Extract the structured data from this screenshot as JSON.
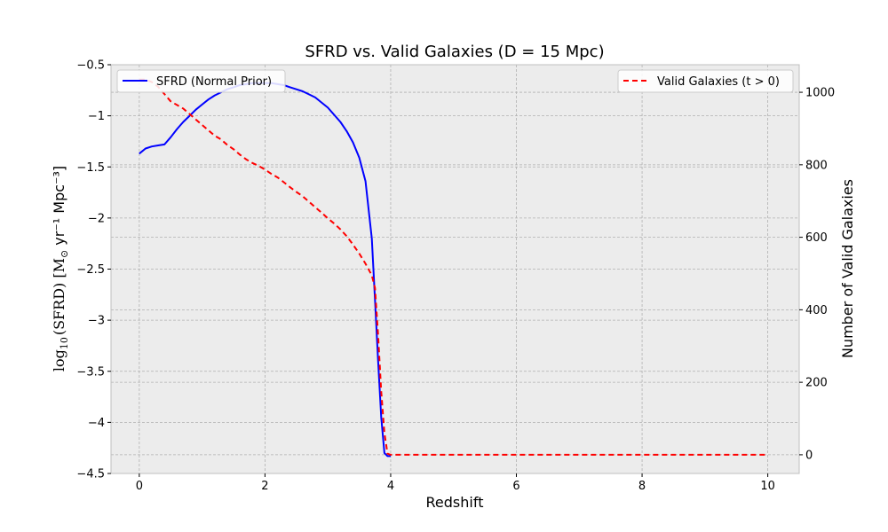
{
  "chart_data": {
    "type": "line",
    "title": "SFRD vs. Valid Galaxies (D = 15 Mpc)",
    "xlabel": "Redshift",
    "ylabel_left": {
      "prefix": "log",
      "subscript": "10",
      "quantity": "(SFRD) [M",
      "sun": "⊙",
      "units": " yr⁻¹ Mpc⁻³]"
    },
    "ylabel_right": "Number of Valid Galaxies",
    "xlim": [
      -0.45,
      10.5
    ],
    "ylim_left": [
      -4.5,
      -0.5
    ],
    "ylim_right": [
      -51.6,
      1076
    ],
    "xticks": [
      0,
      2,
      4,
      6,
      8,
      10
    ],
    "yticks_left": [
      -0.5,
      -1.0,
      -1.5,
      -2.0,
      -2.5,
      -3.0,
      -3.5,
      -4.0,
      -4.5
    ],
    "yticks_right": [
      0,
      200,
      400,
      600,
      800,
      1000
    ],
    "grid": true,
    "series": [
      {
        "name": "SFRD (Normal Prior)",
        "axis": "left",
        "color": "#0000ff",
        "style": "solid",
        "legend": "upper-left",
        "x": [
          0.0,
          0.1,
          0.2,
          0.3,
          0.4,
          0.5,
          0.6,
          0.7,
          0.8,
          0.9,
          1.0,
          1.1,
          1.2,
          1.3,
          1.4,
          1.5,
          1.6,
          1.7,
          1.8,
          1.9,
          2.0,
          2.1,
          2.2,
          2.3,
          2.4,
          2.5,
          2.6,
          2.7,
          2.8,
          2.9,
          3.0,
          3.1,
          3.2,
          3.3,
          3.4,
          3.5,
          3.6,
          3.7,
          3.75,
          3.8,
          3.85,
          3.9,
          3.95,
          4.0
        ],
        "y": [
          -1.37,
          -1.32,
          -1.3,
          -1.29,
          -1.28,
          -1.21,
          -1.13,
          -1.06,
          -1.0,
          -0.94,
          -0.89,
          -0.84,
          -0.8,
          -0.77,
          -0.74,
          -0.72,
          -0.7,
          -0.69,
          -0.68,
          -0.68,
          -0.68,
          -0.68,
          -0.69,
          -0.7,
          -0.72,
          -0.74,
          -0.76,
          -0.79,
          -0.82,
          -0.87,
          -0.92,
          -0.99,
          -1.06,
          -1.15,
          -1.26,
          -1.41,
          -1.64,
          -2.2,
          -2.8,
          -3.4,
          -3.95,
          -4.3,
          -4.33,
          -4.33
        ]
      },
      {
        "name": "Valid Galaxies (t > 0)",
        "axis": "right",
        "color": "#ff0000",
        "style": "dashed",
        "legend": "upper-right",
        "x": [
          0.0,
          0.1,
          0.2,
          0.3,
          0.4,
          0.5,
          0.6,
          0.7,
          0.8,
          0.9,
          1.0,
          1.1,
          1.2,
          1.3,
          1.4,
          1.5,
          1.6,
          1.7,
          1.8,
          1.9,
          2.0,
          2.1,
          2.2,
          2.3,
          2.4,
          2.5,
          2.6,
          2.7,
          2.8,
          2.9,
          3.0,
          3.1,
          3.2,
          3.3,
          3.4,
          3.5,
          3.6,
          3.7,
          3.75,
          3.8,
          3.85,
          3.9,
          3.95,
          4.0,
          5.0,
          6.0,
          7.0,
          8.0,
          9.0,
          10.0
        ],
        "y": [
          1035,
          1035,
          1028,
          1015,
          995,
          975,
          965,
          955,
          940,
          925,
          910,
          895,
          880,
          870,
          855,
          843,
          828,
          815,
          805,
          797,
          787,
          775,
          765,
          752,
          738,
          725,
          713,
          698,
          683,
          668,
          652,
          638,
          622,
          603,
          580,
          555,
          527,
          495,
          460,
          330,
          175,
          60,
          3,
          0,
          0,
          0,
          0,
          0,
          0,
          0
        ]
      }
    ]
  }
}
